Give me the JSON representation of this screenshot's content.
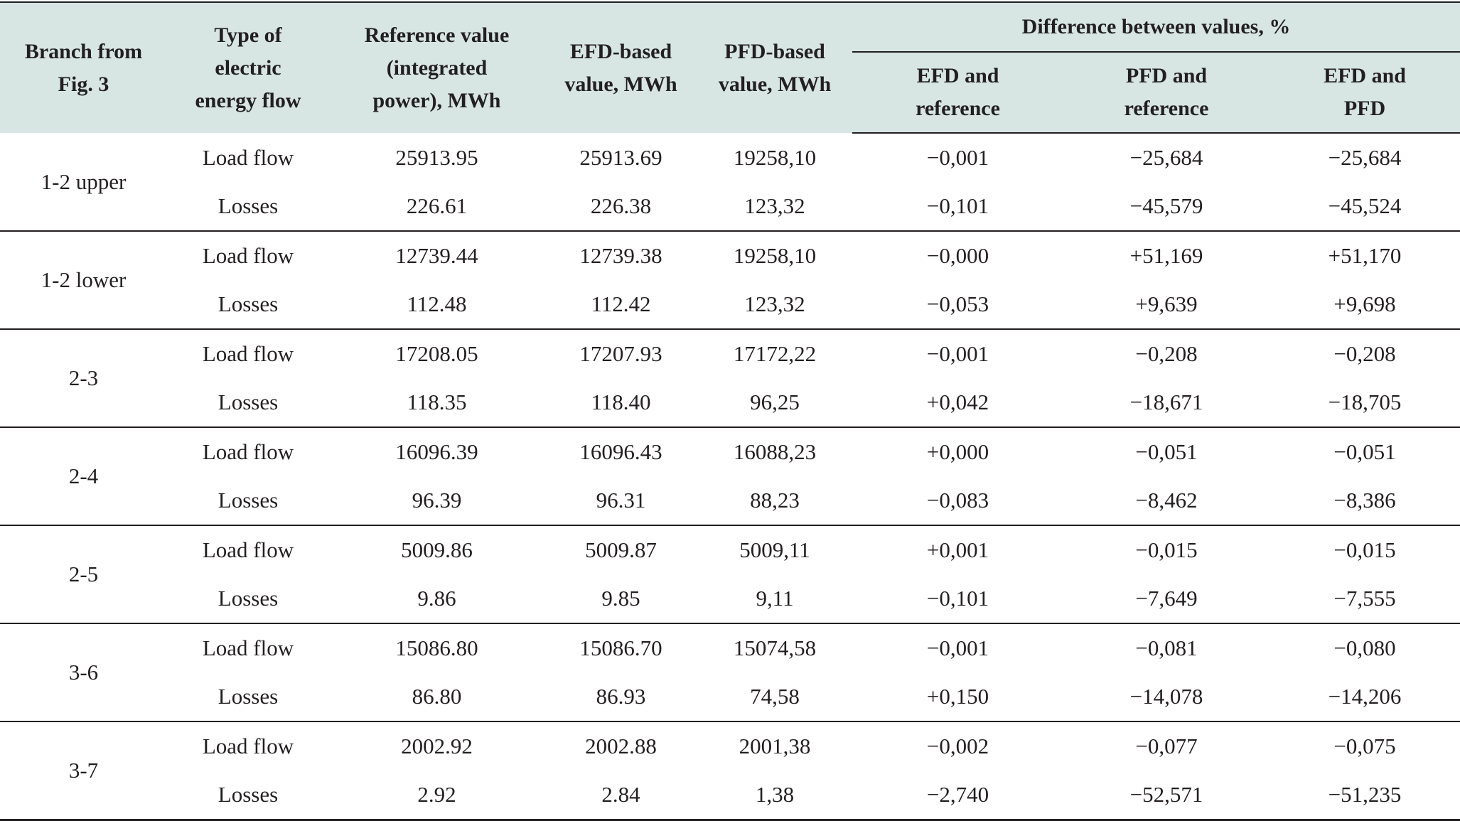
{
  "table": {
    "headers": {
      "branch": [
        "Branch from",
        "Fig. 3"
      ],
      "type": [
        "Type of",
        "electric",
        "energy flow"
      ],
      "reference": [
        "Reference value",
        "(integrated",
        "power), MWh"
      ],
      "efd": [
        "EFD-based",
        "value, MWh"
      ],
      "pfd": [
        "PFD-based",
        "value, MWh"
      ],
      "difference_group": "Difference between values, %",
      "efd_ref": [
        "EFD and",
        "reference"
      ],
      "pfd_ref": [
        "PFD and",
        "reference"
      ],
      "efd_pfd": [
        "EFD and",
        "PFD"
      ]
    },
    "rows": [
      {
        "branch": "1-2 upper",
        "load": {
          "type": "Load flow",
          "ref": "25913.95",
          "efd": "25913.69",
          "pfd": "19258,10",
          "d_efd_ref": "−0,001",
          "d_pfd_ref": "−25,684",
          "d_efd_pfd": "−25,684"
        },
        "losses": {
          "type": "Losses",
          "ref": "226.61",
          "efd": "226.38",
          "pfd": "123,32",
          "d_efd_ref": "−0,101",
          "d_pfd_ref": "−45,579",
          "d_efd_pfd": "−45,524"
        }
      },
      {
        "branch": "1-2 lower",
        "load": {
          "type": "Load flow",
          "ref": "12739.44",
          "efd": "12739.38",
          "pfd": "19258,10",
          "d_efd_ref": "−0,000",
          "d_pfd_ref": "+51,169",
          "d_efd_pfd": "+51,170"
        },
        "losses": {
          "type": "Losses",
          "ref": "112.48",
          "efd": "112.42",
          "pfd": "123,32",
          "d_efd_ref": "−0,053",
          "d_pfd_ref": "+9,639",
          "d_efd_pfd": "+9,698"
        }
      },
      {
        "branch": "2-3",
        "load": {
          "type": "Load flow",
          "ref": "17208.05",
          "efd": "17207.93",
          "pfd": "17172,22",
          "d_efd_ref": "−0,001",
          "d_pfd_ref": "−0,208",
          "d_efd_pfd": "−0,208"
        },
        "losses": {
          "type": "Losses",
          "ref": "118.35",
          "efd": "118.40",
          "pfd": "96,25",
          "d_efd_ref": "+0,042",
          "d_pfd_ref": "−18,671",
          "d_efd_pfd": "−18,705"
        }
      },
      {
        "branch": "2-4",
        "load": {
          "type": "Load flow",
          "ref": "16096.39",
          "efd": "16096.43",
          "pfd": "16088,23",
          "d_efd_ref": "+0,000",
          "d_pfd_ref": "−0,051",
          "d_efd_pfd": "−0,051"
        },
        "losses": {
          "type": "Losses",
          "ref": "96.39",
          "efd": "96.31",
          "pfd": "88,23",
          "d_efd_ref": "−0,083",
          "d_pfd_ref": "−8,462",
          "d_efd_pfd": "−8,386"
        }
      },
      {
        "branch": "2-5",
        "load": {
          "type": "Load flow",
          "ref": "5009.86",
          "efd": "5009.87",
          "pfd": "5009,11",
          "d_efd_ref": "+0,001",
          "d_pfd_ref": "−0,015",
          "d_efd_pfd": "−0,015"
        },
        "losses": {
          "type": "Losses",
          "ref": "9.86",
          "efd": "9.85",
          "pfd": "9,11",
          "d_efd_ref": "−0,101",
          "d_pfd_ref": "−7,649",
          "d_efd_pfd": "−7,555"
        }
      },
      {
        "branch": "3-6",
        "load": {
          "type": "Load flow",
          "ref": "15086.80",
          "efd": "15086.70",
          "pfd": "15074,58",
          "d_efd_ref": "−0,001",
          "d_pfd_ref": "−0,081",
          "d_efd_pfd": "−0,080"
        },
        "losses": {
          "type": "Losses",
          "ref": "86.80",
          "efd": "86.93",
          "pfd": "74,58",
          "d_efd_ref": "+0,150",
          "d_pfd_ref": "−14,078",
          "d_efd_pfd": "−14,206"
        }
      },
      {
        "branch": "3-7",
        "load": {
          "type": "Load flow",
          "ref": "2002.92",
          "efd": "2002.88",
          "pfd": "2001,38",
          "d_efd_ref": "−0,002",
          "d_pfd_ref": "−0,077",
          "d_efd_pfd": "−0,075"
        },
        "losses": {
          "type": "Losses",
          "ref": "2.92",
          "efd": "2.84",
          "pfd": "1,38",
          "d_efd_ref": "−2,740",
          "d_pfd_ref": "−52,571",
          "d_efd_pfd": "−51,235"
        }
      }
    ]
  },
  "colors": {
    "header_background": "#d7e6e3",
    "text": "#231f20",
    "rule": "#231f20"
  }
}
